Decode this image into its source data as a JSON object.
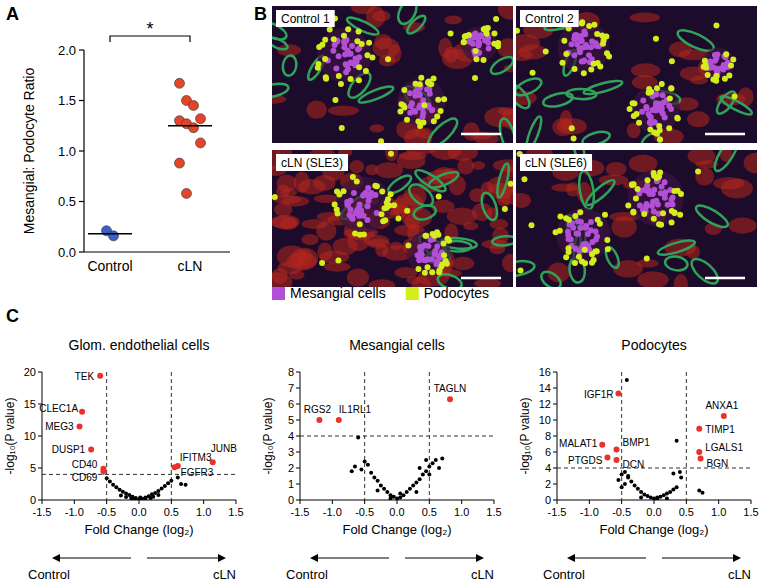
{
  "chart_data": [
    {
      "type": "dot",
      "panel": "A",
      "categories": [
        "Control",
        "cLN"
      ],
      "values": [
        [
          0.21,
          0.16
        ],
        [
          1.67,
          1.5,
          1.45,
          1.32,
          1.3,
          1.27,
          1.23,
          1.08,
          0.88,
          0.58
        ]
      ],
      "colors": [
        "#3b5fc4",
        "#e2452a"
      ],
      "means": [
        0.18,
        1.25
      ],
      "significance": "*",
      "y_label": "Mesangial: Podocyte Ratio",
      "ylim": [
        0,
        2
      ],
      "yticks": [
        {
          "value": 0,
          "label": "0.0"
        },
        0.5,
        {
          "value": 1,
          "label": "1.0"
        },
        1.5,
        {
          "value": 2,
          "label": "2.0"
        }
      ]
    },
    {
      "type": "image",
      "panel": "B",
      "titles": [
        "Control 1",
        "Control 2",
        "cLN (SLE3)",
        "cLN (SLE6)"
      ],
      "series": [
        {
          "name": "Mesangial cells",
          "color": "#b14fd6"
        },
        {
          "name": "Podocytes",
          "color": "#d4ee1c"
        }
      ]
    },
    {
      "type": "scatter",
      "panel": "C",
      "title": "Glom. endothelial cells",
      "x_label": "Fold Change (log₂)",
      "y_label": "-log₁₀(P value)",
      "direction_labels": [
        "Control",
        "cLN"
      ],
      "xlim": [
        -1.5,
        1.5
      ],
      "xticks": [
        -1.5,
        {
          "value": -1,
          "label": "-1.0"
        },
        -0.5,
        {
          "value": 0,
          "label": "0.0"
        },
        0.5,
        {
          "value": 1,
          "label": "1.0"
        },
        1.5
      ],
      "ylim": [
        0,
        20
      ],
      "yticks": [
        0,
        5,
        10,
        15,
        20
      ],
      "x_thresholds": [
        -0.5,
        0.5
      ],
      "y_threshold": 4,
      "series": [
        {
          "color": "#000000",
          "x": [
            0.0,
            0.05,
            -0.05,
            0.1,
            -0.1,
            0.15,
            -0.15,
            0.2,
            -0.2,
            0.25,
            -0.25,
            0.3,
            -0.3,
            0.35,
            -0.35,
            0.4,
            -0.4,
            0.45,
            -0.45,
            0.1,
            -0.12,
            0.22,
            -0.08,
            0.02,
            0.5,
            -0.5,
            0.65,
            0.72,
            0.6,
            -0.55,
            0.3,
            -0.28,
            0.18,
            -0.2
          ],
          "values": [
            0.1,
            0.2,
            0.3,
            0.4,
            0.5,
            0.6,
            0.8,
            0.9,
            1.0,
            1.1,
            1.3,
            1.4,
            1.6,
            1.8,
            2.0,
            2.2,
            2.4,
            2.6,
            2.9,
            0.2,
            0.3,
            0.5,
            0.15,
            0.4,
            3.0,
            3.4,
            2.5,
            2.4,
            3.5,
            4.3,
            0.8,
            0.7,
            0.3,
            0.45
          ]
        },
        {
          "color": "#e8322b",
          "x": [
            -0.6,
            -0.88,
            -0.92,
            -0.74,
            -0.55,
            -0.55,
            0.6,
            0.55,
            1.14
          ],
          "values": [
            19.4,
            13.8,
            11.5,
            7.9,
            4.9,
            4.5,
            5.3,
            5.1,
            5.9
          ],
          "point_labels": [
            "TEK",
            "CLEC1A",
            "MEG3",
            "DUSP1",
            "CD40",
            "CD69",
            "IFITM3",
            "FGFR3",
            "JUNB"
          ]
        }
      ]
    },
    {
      "type": "scatter",
      "title": "Mesangial cells",
      "x_label": "Fold Change (log₂)",
      "y_label": "-log₁₀(P value)",
      "direction_labels": [
        "Control",
        "cLN"
      ],
      "xlim": [
        -1.5,
        1.5
      ],
      "xticks": [
        -1.5,
        {
          "value": -1,
          "label": "-1.0"
        },
        -0.5,
        {
          "value": 0,
          "label": "0.0"
        },
        0.5,
        {
          "value": 1,
          "label": "1.0"
        },
        1.5
      ],
      "ylim": [
        0,
        8
      ],
      "yticks": [
        0,
        1,
        2,
        3,
        4,
        5,
        6,
        7,
        8
      ],
      "x_thresholds": [
        -0.5,
        0.5
      ],
      "y_threshold": 4,
      "series": [
        {
          "color": "#000000",
          "x": [
            -0.6,
            -0.5,
            -0.45,
            -0.55,
            -0.4,
            -0.35,
            -0.3,
            -0.25,
            -0.2,
            -0.15,
            -0.1,
            -0.05,
            0.0,
            0.05,
            0.1,
            0.15,
            0.2,
            0.25,
            0.3,
            0.35,
            0.4,
            0.45,
            0.5,
            0.55,
            0.6,
            0.7,
            0.65,
            0.45,
            -0.65,
            -0.7,
            0.3,
            -0.3,
            0.05,
            -0.1,
            0.35,
            0.5
          ],
          "values": [
            3.9,
            2.4,
            2.2,
            1.9,
            1.7,
            1.4,
            1.2,
            0.9,
            0.7,
            0.5,
            0.3,
            0.2,
            0.1,
            0.15,
            0.3,
            0.5,
            0.7,
            0.9,
            1.1,
            1.3,
            1.6,
            1.8,
            2.1,
            2.3,
            2.5,
            2.6,
            2.0,
            2.5,
            2.1,
            1.8,
            0.5,
            0.6,
            0.4,
            0.1,
            2.0,
            1.6
          ]
        },
        {
          "color": "#e8322b",
          "x": [
            -1.2,
            -0.9,
            0.82
          ],
          "values": [
            5.0,
            5.0,
            6.3
          ],
          "point_labels": [
            "RGS2",
            "IL1RL1",
            "TAGLN"
          ]
        }
      ]
    },
    {
      "type": "scatter",
      "title": "Podocytes",
      "x_label": "Fold Change (log₂)",
      "y_label": "-log₁₀(P value)",
      "direction_labels": [
        "Control",
        "cLN"
      ],
      "xlim": [
        -1.5,
        1.5
      ],
      "xticks": [
        -1.5,
        {
          "value": -1,
          "label": "-1.0"
        },
        -0.5,
        {
          "value": 0,
          "label": "0.0"
        },
        0.5,
        {
          "value": 1,
          "label": "1.0"
        },
        1.5
      ],
      "ylim": [
        0,
        16
      ],
      "yticks": [
        0,
        2,
        4,
        6,
        8,
        10,
        12,
        14,
        16
      ],
      "x_thresholds": [
        -0.5,
        0.5
      ],
      "y_threshold": 4,
      "series": [
        {
          "color": "#000000",
          "x": [
            -0.42,
            0.35,
            -0.45,
            -0.5,
            -0.4,
            -0.35,
            -0.45,
            -0.3,
            -0.25,
            -0.2,
            -0.15,
            -0.1,
            -0.05,
            0.0,
            0.05,
            0.1,
            0.15,
            0.2,
            0.25,
            0.3,
            0.35,
            0.4,
            0.42,
            -0.55,
            -0.5,
            0.7,
            0.75,
            0.05,
            -0.2,
            0.2,
            -0.4,
            0.3
          ],
          "values": [
            15.0,
            7.4,
            3.5,
            3.2,
            2.8,
            2.3,
            2.0,
            1.8,
            1.4,
            1.0,
            0.7,
            0.5,
            0.3,
            0.2,
            0.3,
            0.4,
            0.6,
            0.8,
            1.0,
            1.3,
            1.6,
            3.5,
            2.8,
            2.5,
            1.6,
            1.2,
            0.9,
            0.1,
            0.3,
            0.2,
            3.0,
            3.3
          ]
        },
        {
          "color": "#e8322b",
          "x": [
            -0.55,
            -0.8,
            -0.72,
            -0.58,
            -0.58,
            1.08,
            0.7,
            0.7,
            0.72
          ],
          "values": [
            13.3,
            6.9,
            5.3,
            6.3,
            5.0,
            10.5,
            8.9,
            6.0,
            5.2
          ],
          "point_labels": [
            "IGF1R",
            "MALAT1",
            "PTGDS",
            "BMP1",
            "DCN",
            "ANXA1",
            "TIMP1",
            "LGALS1",
            "BGN"
          ]
        }
      ]
    }
  ]
}
